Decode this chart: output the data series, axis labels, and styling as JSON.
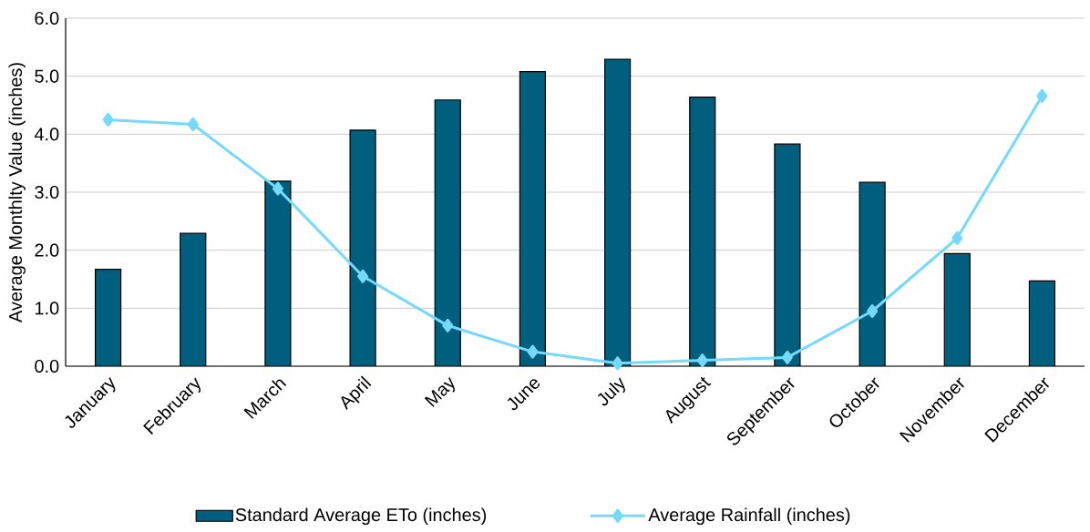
{
  "chart_data": {
    "type": "bar",
    "ylabel": "Average Monthlty Value (inches)",
    "categories": [
      "January",
      "February",
      "March",
      "April",
      "May",
      "June",
      "July",
      "August",
      "September",
      "October",
      "November",
      "December"
    ],
    "series": [
      {
        "name": "Standard Average ETo (inches)",
        "color": "#005f7f",
        "values": [
          1.67,
          2.29,
          3.19,
          4.07,
          4.59,
          5.08,
          5.29,
          4.64,
          3.83,
          3.17,
          1.94,
          1.47
        ]
      },
      {
        "name": "Average Rainfall (inches)",
        "type": "line",
        "marker": "diamond",
        "line_style": "solid",
        "color": "#74d9fb",
        "values": [
          4.25,
          4.17,
          3.06,
          1.55,
          0.7,
          0.25,
          0.05,
          0.1,
          0.15,
          0.95,
          2.21,
          4.66
        ]
      }
    ],
    "ylim": [
      0,
      6
    ],
    "yticks": [
      {
        "value": 0,
        "label": "0.0"
      },
      {
        "value": 1,
        "label": "1.0"
      },
      {
        "value": 2,
        "label": "2.0"
      },
      {
        "value": 3,
        "label": "3.0"
      },
      {
        "value": 4,
        "label": "4.0"
      },
      {
        "value": 5,
        "label": "5.0"
      },
      {
        "value": 6,
        "label": "6.0"
      }
    ],
    "grid": "y",
    "legend": "bottom"
  }
}
